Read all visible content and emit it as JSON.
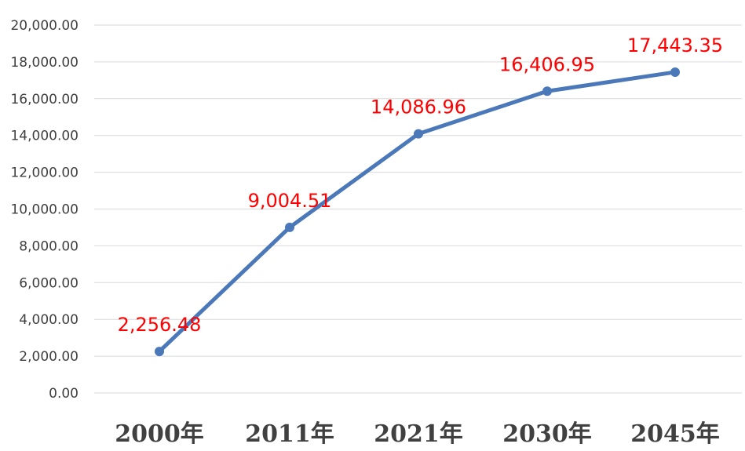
{
  "chart_data": {
    "type": "line",
    "title": "",
    "xlabel": "",
    "ylabel": "",
    "categories": [
      "2000年",
      "2011年",
      "2021年",
      "2030年",
      "2045年"
    ],
    "series": [
      {
        "values": [
          2256.48,
          9004.51,
          14086.96,
          16406.95,
          17443.35
        ],
        "data_labels": [
          "2,256.48",
          "9,004.51",
          "14,086.96",
          "16,406.95",
          "17,443.35"
        ],
        "color": "#4a78b9",
        "data_label_color": "#ff0000"
      }
    ],
    "ylim": [
      0,
      20000
    ],
    "y_ticks": [
      "0.00",
      "2,000.00",
      "4,000.00",
      "6,000.00",
      "8,000.00",
      "10,000.00",
      "12,000.00",
      "14,000.00",
      "16,000.00",
      "18,000.00",
      "20,000.00"
    ],
    "grid": true,
    "legend": "none"
  }
}
